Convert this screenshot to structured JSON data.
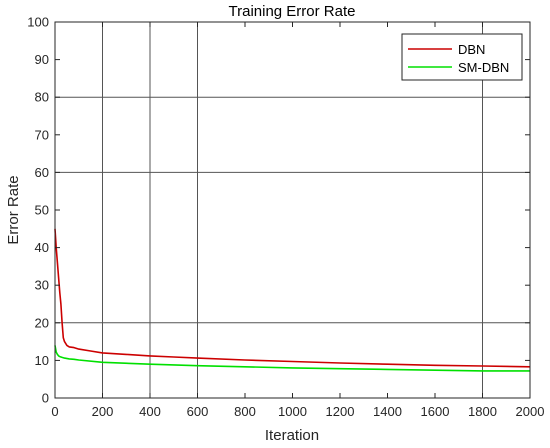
{
  "chart_data": {
    "type": "line",
    "title": "Training Error Rate",
    "xlabel": "Iteration",
    "ylabel": "Error Rate",
    "xlim": [
      0,
      2000
    ],
    "ylim": [
      0,
      100
    ],
    "xticks": [
      0,
      200,
      400,
      600,
      800,
      1000,
      1200,
      1400,
      1600,
      1800,
      2000
    ],
    "yticks": [
      0,
      10,
      20,
      30,
      40,
      50,
      60,
      70,
      80,
      90,
      100
    ],
    "grid_x": [
      200,
      400,
      600,
      1800
    ],
    "grid_y": [
      20,
      60,
      80
    ],
    "legend_position": "top-right",
    "series": [
      {
        "name": "DBN",
        "color": "#cc0000",
        "x": [
          0,
          5,
          10,
          15,
          20,
          25,
          30,
          35,
          40,
          50,
          60,
          80,
          100,
          150,
          200,
          300,
          400,
          500,
          600,
          800,
          1000,
          1200,
          1400,
          1600,
          1800,
          2000
        ],
        "y": [
          45,
          40,
          36,
          32,
          28,
          25,
          20,
          16,
          15,
          14,
          13.6,
          13.4,
          13.0,
          12.5,
          12.0,
          11.6,
          11.2,
          10.9,
          10.6,
          10.1,
          9.7,
          9.3,
          9.0,
          8.7,
          8.5,
          8.3
        ]
      },
      {
        "name": "SM-DBN",
        "color": "#00e000",
        "x": [
          0,
          5,
          10,
          15,
          20,
          30,
          40,
          60,
          80,
          100,
          200,
          400,
          600,
          800,
          1000,
          1200,
          1400,
          1600,
          1800,
          2000
        ],
        "y": [
          14.0,
          12.2,
          11.6,
          11.2,
          11.0,
          10.8,
          10.6,
          10.4,
          10.3,
          10.1,
          9.5,
          9.0,
          8.6,
          8.3,
          8.0,
          7.8,
          7.6,
          7.4,
          7.2,
          7.2
        ]
      }
    ]
  }
}
